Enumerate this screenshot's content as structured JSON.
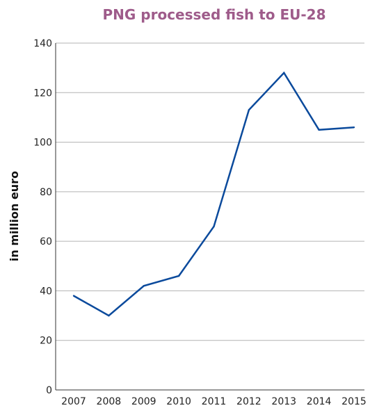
{
  "chart_data": {
    "type": "line",
    "title": "PNG processed fish to EU-28",
    "xlabel": "",
    "ylabel": "in million euro",
    "x": [
      "2007",
      "2008",
      "2009",
      "2010",
      "2011",
      "2012",
      "2013",
      "2014",
      "2015"
    ],
    "series": [
      {
        "values": [
          38,
          30,
          42,
          46,
          66,
          113,
          128,
          105,
          106
        ]
      }
    ],
    "ylim": [
      0,
      140
    ],
    "yticks": [
      "0",
      "20",
      "40",
      "60",
      "80",
      "100",
      "120",
      "140"
    ],
    "grid": true,
    "colors": {
      "title": "#9e5b8a",
      "line": "#0b4a9c",
      "grid": "#b3b3b3",
      "axis": "#333333"
    }
  }
}
